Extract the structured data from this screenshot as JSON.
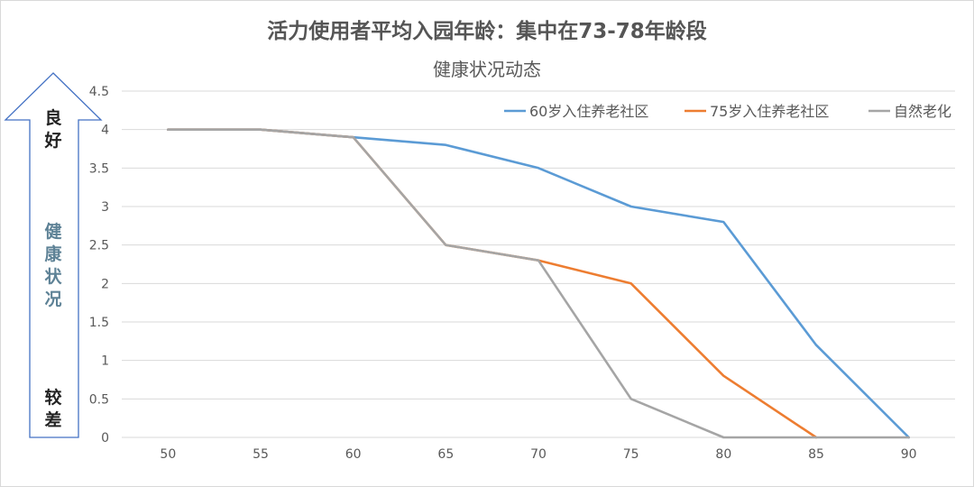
{
  "chart_data": {
    "type": "line",
    "title": "活力使用者平均入园年龄：集中在73-78年龄段",
    "subtitle": "健康状况动态",
    "x": [
      50,
      55,
      60,
      65,
      70,
      75,
      80,
      85,
      90
    ],
    "xlim": [
      47.5,
      92.5
    ],
    "ylim": [
      0,
      4.5
    ],
    "yticks": [
      0,
      0.5,
      1,
      1.5,
      2,
      2.5,
      3,
      3.5,
      4,
      4.5
    ],
    "grid": true,
    "legend_position": "top-right",
    "series": [
      {
        "name": "60岁入住养老社区",
        "color": "#5b9bd5",
        "values": [
          4,
          4,
          3.9,
          3.8,
          3.5,
          3.0,
          2.8,
          1.2,
          0
        ]
      },
      {
        "name": "75岁入住养老社区",
        "color": "#ed7d31",
        "values": [
          4,
          4,
          3.9,
          2.5,
          2.3,
          2.0,
          0.8,
          0,
          null
        ]
      },
      {
        "name": "自然老化",
        "color": "#a5a5a5",
        "values": [
          4,
          4,
          3.9,
          2.5,
          2.3,
          0.5,
          0,
          0,
          0
        ]
      }
    ],
    "y_arrow": {
      "top_label": "良好",
      "middle_label": "健康状况",
      "bottom_label": "较差"
    }
  }
}
